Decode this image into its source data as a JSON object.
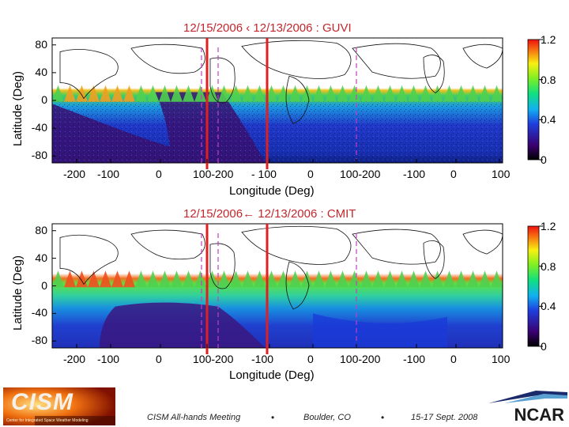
{
  "chart_data": [
    {
      "type": "heatmap",
      "title": "12/15/2006 ‹  12/13/2006 : GUVI",
      "xlabel": "Longitude (Deg)",
      "ylabel": "Latitude (Deg)",
      "x_tick_labels": [
        "-200",
        "-100",
        "0",
        "100-200",
        "- 100",
        "0",
        "100-200",
        "-100",
        "0",
        "100"
      ],
      "y_tick_labels": [
        "80",
        "40",
        "0",
        "-40",
        "-80"
      ],
      "colorbar_ticks": [
        "1.2",
        "0.8",
        "0.4",
        "0"
      ],
      "colorbar_range": [
        0,
        1.2
      ],
      "latitude_range": [
        -90,
        90
      ]
    },
    {
      "type": "heatmap",
      "title": "12/15/2006← 12/13/2006 : CMIT",
      "xlabel": "Longitude (Deg)",
      "ylabel": "Latitude (Deg)",
      "x_tick_labels": [
        "-200",
        "-100",
        "0",
        "100-200",
        "-100",
        "0",
        "100-200",
        "-100",
        "0",
        "100"
      ],
      "y_tick_labels": [
        "80",
        "40",
        "0",
        "-40",
        "-80"
      ],
      "colorbar_ticks": [
        "1.2",
        "0.8",
        "0.4",
        "0"
      ],
      "colorbar_range": [
        0,
        1.2
      ],
      "latitude_range": [
        -90,
        90
      ]
    }
  ],
  "footer": {
    "meeting": "CISM All-hands Meeting",
    "location": "Boulder, CO",
    "dates": "15-17 Sept. 2008",
    "bullet": "•",
    "ncar": "NCAR",
    "logo_text": "CISM",
    "logo_subtitle": "Center for Integrated Space Weather Modeling"
  },
  "colors": {
    "title_red": "#c1272d",
    "marker_red": "#e02020",
    "marker_magenta": "#c040c0"
  }
}
